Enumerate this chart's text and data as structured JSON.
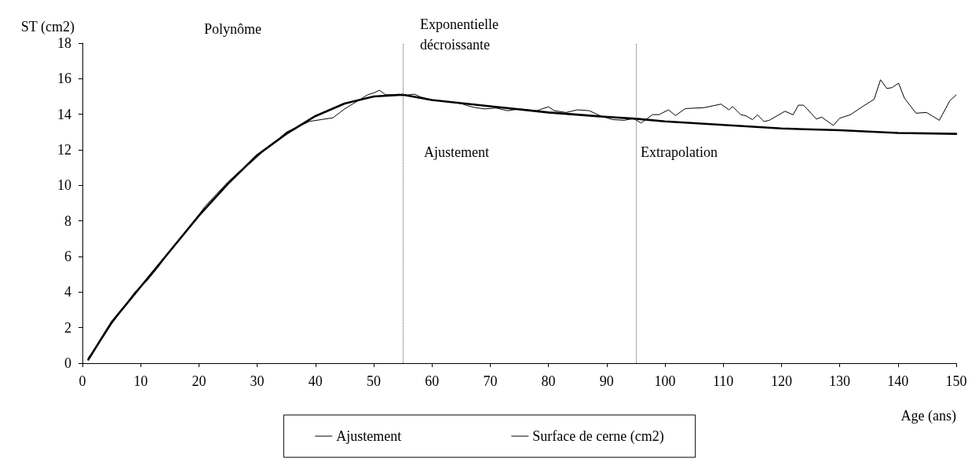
{
  "chart_data": {
    "type": "line",
    "xlabel": "Age (ans)",
    "ylabel": "ST (cm2)",
    "xlim": [
      0,
      150
    ],
    "xticks": [
      0,
      10,
      20,
      30,
      40,
      50,
      60,
      70,
      80,
      90,
      100,
      110,
      120,
      130,
      140,
      150
    ],
    "ylim": [
      0,
      18
    ],
    "yticks": [
      0,
      2,
      4,
      6,
      8,
      10,
      12,
      14,
      16,
      18
    ],
    "grid": false,
    "legend": "bottom",
    "marker": "none",
    "series": [
      {
        "name": "Ajustement",
        "color": "#000000",
        "x": [
          1,
          5,
          10,
          15,
          20,
          25,
          30,
          35,
          40,
          45,
          50,
          55,
          60,
          70,
          80,
          90,
          95,
          100,
          110,
          120,
          130,
          140,
          150
        ],
        "values": [
          0.2,
          2.3,
          4.3,
          6.3,
          8.3,
          10.1,
          11.7,
          12.9,
          13.9,
          14.6,
          15.0,
          15.1,
          14.8,
          14.45,
          14.1,
          13.85,
          13.75,
          13.6,
          13.4,
          13.2,
          13.1,
          12.95,
          12.9
        ]
      },
      {
        "name": "Surface de cerne (cm2)",
        "color": "#000000",
        "x": [
          1,
          3,
          5,
          7,
          9,
          11,
          13,
          15,
          17,
          19,
          21,
          23,
          25,
          27,
          29,
          31,
          33,
          35,
          37,
          39,
          41,
          43,
          45,
          47,
          49,
          50,
          51,
          52,
          53,
          55,
          57,
          58,
          60,
          63,
          65,
          67,
          69,
          71,
          73,
          75,
          78,
          80,
          81,
          83,
          85,
          87,
          89,
          91,
          93,
          94.6,
          95.9,
          97.9,
          99,
          100.6,
          101.8,
          103.5,
          106.7,
          109.6,
          111,
          111.6,
          113,
          113.9,
          115,
          115.9,
          117,
          117.9,
          120.6,
          122,
          122.9,
          123.8,
          126,
          126.9,
          128.9,
          130,
          131.8,
          134.1,
          135.9,
          137,
          138.1,
          139,
          140.1,
          141.1,
          143.1,
          144.9,
          147.1,
          148.9,
          150
        ],
        "values": [
          0.3,
          1.2,
          2.2,
          3.1,
          4.0,
          4.6,
          5.4,
          6.3,
          7.1,
          7.9,
          8.8,
          9.5,
          10.2,
          10.8,
          11.3,
          11.9,
          12.4,
          13.0,
          13.3,
          13.6,
          13.7,
          13.8,
          14.3,
          14.7,
          15.1,
          15.2,
          15.35,
          15.1,
          15.1,
          15.05,
          15.13,
          14.98,
          14.8,
          14.7,
          14.6,
          14.4,
          14.3,
          14.35,
          14.2,
          14.3,
          14.2,
          14.42,
          14.2,
          14.1,
          14.25,
          14.2,
          13.9,
          13.7,
          13.66,
          13.76,
          13.51,
          13.98,
          13.98,
          14.25,
          13.93,
          14.32,
          14.37,
          14.57,
          14.25,
          14.44,
          13.98,
          13.91,
          13.7,
          13.97,
          13.59,
          13.66,
          14.17,
          13.97,
          14.51,
          14.51,
          13.73,
          13.84,
          13.37,
          13.78,
          13.97,
          14.47,
          14.84,
          15.94,
          15.45,
          15.5,
          15.75,
          14.91,
          14.06,
          14.1,
          13.66,
          14.76,
          15.09
        ]
      }
    ],
    "ref_lines": [
      {
        "axis": "x",
        "value": 55,
        "line_style": "dotted",
        "color": "#555555"
      },
      {
        "axis": "x",
        "value": 95,
        "line_style": "dotted",
        "color": "#555555"
      }
    ],
    "annotations": [
      "Polynôme",
      "Exponentielle\ndécroissante",
      "Ajustement",
      "Extrapolation"
    ]
  }
}
